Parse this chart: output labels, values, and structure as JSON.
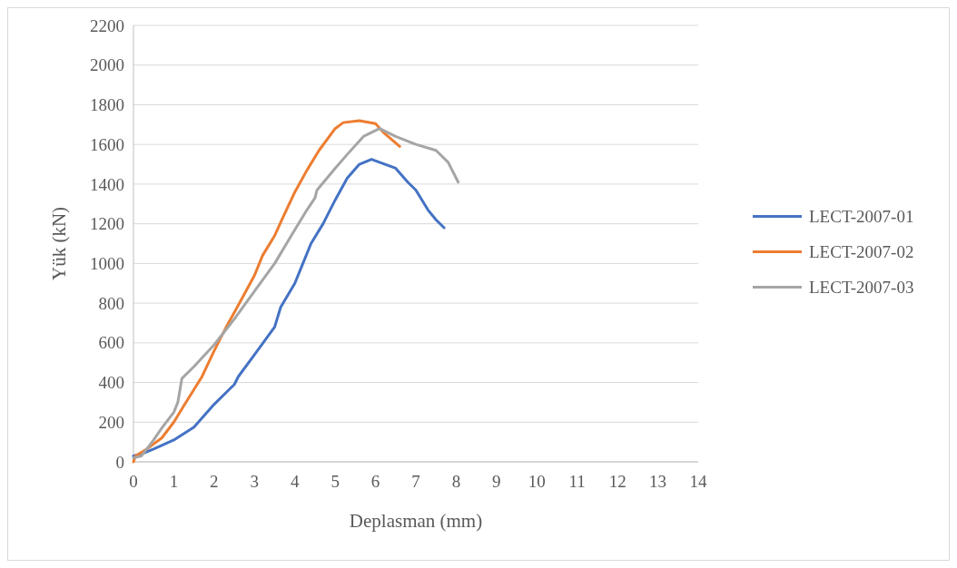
{
  "chart_data": {
    "type": "line",
    "xlabel": "Deplasman (mm)",
    "ylabel": "Yük (kN)",
    "xlim": [
      0,
      14
    ],
    "xticks": [
      0,
      1,
      2,
      3,
      4,
      5,
      6,
      7,
      8,
      9,
      10,
      11,
      12,
      13,
      14
    ],
    "ylim": [
      0,
      2200
    ],
    "yticks": [
      0,
      200,
      400,
      600,
      800,
      1000,
      1200,
      1400,
      1600,
      1800,
      2000,
      2200
    ],
    "grid": "y",
    "legend": "right",
    "marker": "none",
    "line_style": "solid",
    "series": [
      {
        "name": "LECT-2007-01",
        "color": "#4472c4",
        "x": [
          0,
          0.2,
          0.5,
          1,
          1.5,
          2,
          2.5,
          2.6,
          3,
          3.5,
          3.65,
          4,
          4.2,
          4.4,
          4.7,
          5,
          5.3,
          5.6,
          5.9,
          6.1,
          6.3,
          6.5,
          6.8,
          7,
          7.3,
          7.5,
          7.7
        ],
        "values": [
          30,
          40,
          65,
          110,
          175,
          290,
          390,
          430,
          540,
          680,
          780,
          900,
          1000,
          1100,
          1200,
          1320,
          1430,
          1500,
          1525,
          1510,
          1495,
          1480,
          1410,
          1370,
          1270,
          1220,
          1180
        ]
      },
      {
        "name": "LECT-2007-02",
        "color": "#ed7d31",
        "x": [
          0,
          0.05,
          0.3,
          0.7,
          1,
          1.3,
          1.7,
          2,
          2.3,
          2.6,
          3,
          3.2,
          3.5,
          3.7,
          4,
          4.3,
          4.6,
          5,
          5.2,
          5.6,
          6,
          6.2,
          6.6
        ],
        "values": [
          0,
          30,
          60,
          120,
          200,
          300,
          430,
          560,
          680,
          790,
          940,
          1040,
          1140,
          1230,
          1360,
          1470,
          1570,
          1680,
          1710,
          1720,
          1705,
          1660,
          1590
        ]
      },
      {
        "name": "LECT-2007-03",
        "color": "#a5a5a5",
        "x": [
          0,
          0.2,
          0.5,
          0.7,
          1,
          1.1,
          1.2,
          1.5,
          2,
          2.5,
          3,
          3.5,
          4,
          4.3,
          4.5,
          4.55,
          5,
          5.3,
          5.7,
          6.1,
          6.5,
          7,
          7.5,
          7.8,
          8.05
        ],
        "values": [
          20,
          30,
          110,
          170,
          250,
          300,
          420,
          480,
          590,
          720,
          860,
          1000,
          1170,
          1270,
          1330,
          1370,
          1480,
          1550,
          1640,
          1680,
          1640,
          1600,
          1570,
          1510,
          1410
        ]
      }
    ]
  }
}
